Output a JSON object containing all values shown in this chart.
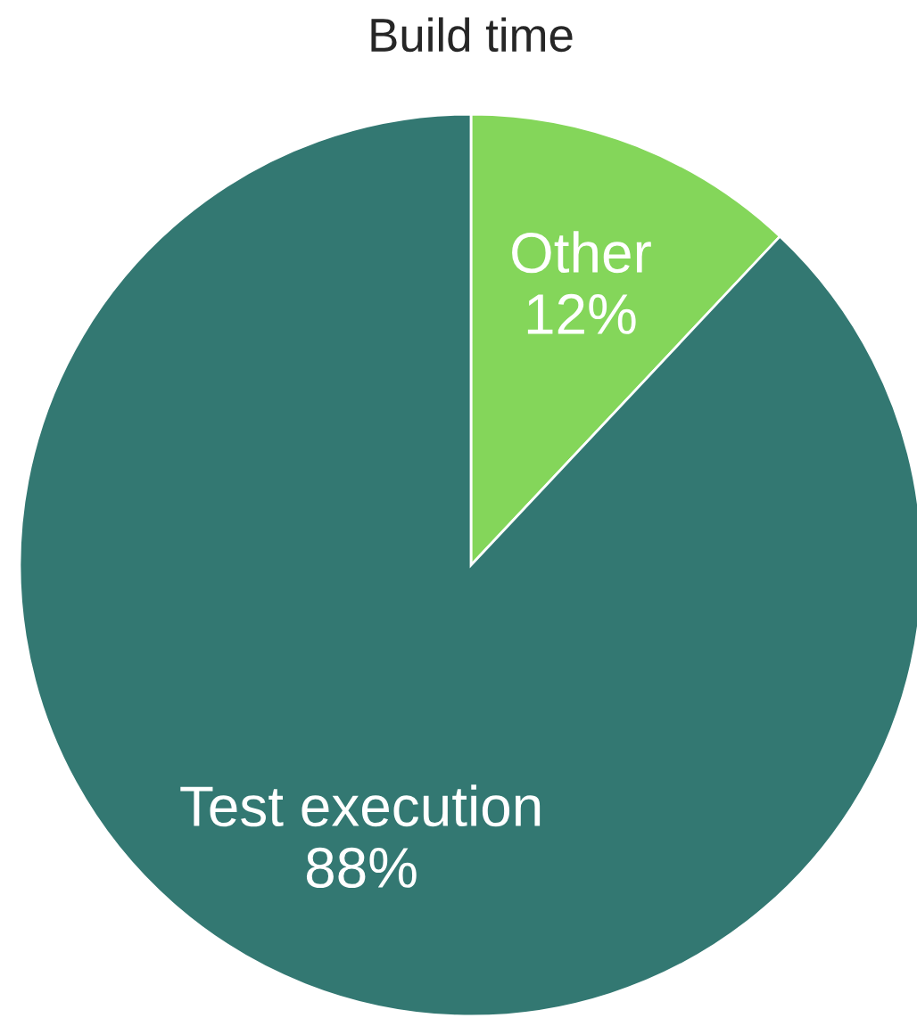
{
  "chart_data": {
    "type": "pie",
    "title": "Build time",
    "categories": [
      "Other",
      "Test execution"
    ],
    "values": [
      12,
      88
    ],
    "value_labels": [
      "12%",
      "88%"
    ],
    "colors": [
      "#84d65a",
      "#337872"
    ]
  }
}
